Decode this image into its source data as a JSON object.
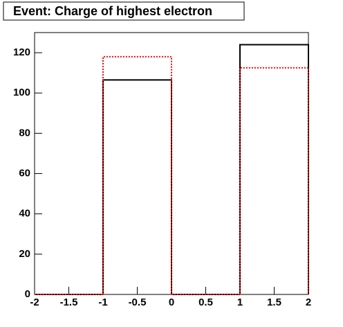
{
  "chart_data": {
    "type": "histogram",
    "title": "Event: Charge of highest electron",
    "bins": [
      -2,
      -1,
      0,
      1,
      2
    ],
    "series": [
      {
        "color": "#000000",
        "linestyle": "solid",
        "values": [
          0,
          106.5,
          0,
          124
        ]
      },
      {
        "color": "#ff0000",
        "linestyle": "dotted",
        "values": [
          0,
          118,
          0,
          112.5
        ]
      }
    ],
    "xlim": [
      -2,
      2
    ],
    "xticks": [
      -2,
      -1.5,
      -1,
      -0.5,
      0,
      0.5,
      1,
      1.5,
      2
    ],
    "ylim": [
      0,
      130
    ],
    "yticks": [
      0,
      20,
      40,
      60,
      80,
      100,
      120
    ]
  }
}
